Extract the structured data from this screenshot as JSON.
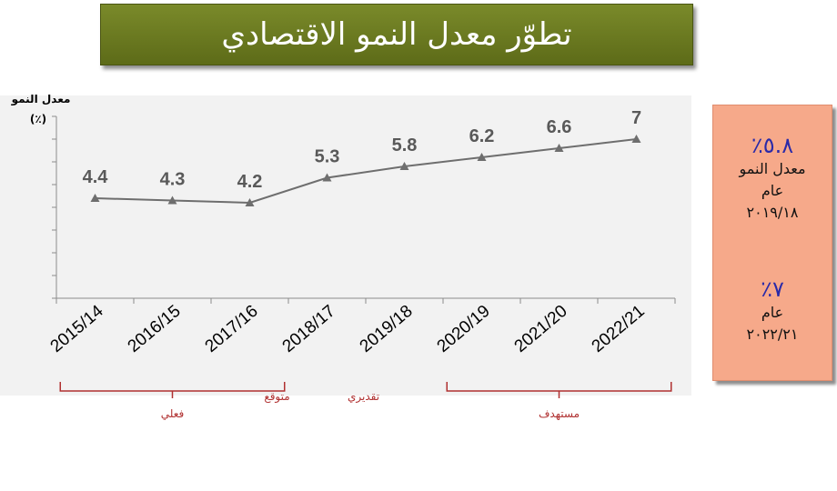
{
  "title": "تطوّر معدل النمو الاقتصادي",
  "side_box": {
    "item1_pct": "٥.٨٪",
    "item1_label": "معدل النمو",
    "item1_year_label": "عام",
    "item1_year": "٢٠١٩/١٨",
    "item2_pct": "٧٪",
    "item2_year_label": "عام",
    "item2_year": "٢٠٢٢/٢١"
  },
  "chart_data": {
    "type": "line",
    "ylabel": "معدل النمو",
    "yunit": "(٪)",
    "categories": [
      "2015/14",
      "2016/15",
      "2017/16",
      "2018/17",
      "2019/18",
      "2020/19",
      "2021/20",
      "2022/21"
    ],
    "series": [
      {
        "values": [
          4.4,
          4.3,
          4.2,
          5.3,
          5.8,
          6.2,
          6.6,
          7
        ]
      }
    ],
    "data_labels": [
      "4.4",
      "4.3",
      "4.2",
      "5.3",
      "5.8",
      "6.2",
      "6.6",
      "7"
    ],
    "groups": [
      {
        "label": "فعلي",
        "from": 0,
        "to": 2
      },
      {
        "label": "متوقع",
        "from": 3,
        "to": 3
      },
      {
        "label": "تقديري",
        "from": 4,
        "to": 4
      },
      {
        "label": "مستهدف",
        "from": 5,
        "to": 7
      }
    ],
    "ylim": [
      0,
      8
    ],
    "y_gridlines": false,
    "colors": {
      "line": "#6e6e6e",
      "marker": "#6e6e6e",
      "label": "#595959",
      "group_bracket": "#b03030"
    }
  }
}
